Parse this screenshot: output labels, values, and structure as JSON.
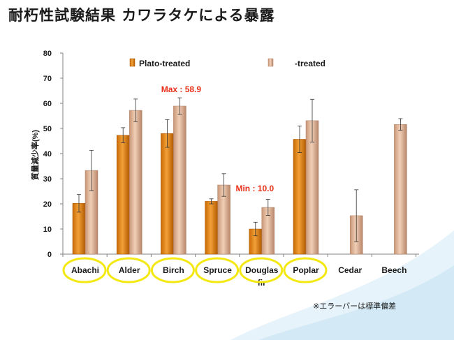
{
  "title": "耐朽性試験結果  カワラタケによる暴露",
  "footnote": "※エラーバーは標準偏差",
  "colors": {
    "treated": "#e0820c",
    "treated_dark": "#a85400",
    "untreated": "#dcae8e",
    "untreated_dark": "#b07f62",
    "annotation": "#e8301a",
    "circle": "#f4e812",
    "swoosh": "#c9e4f3"
  },
  "chart_data": {
    "type": "bar",
    "ylabel": "質量減少率(%)",
    "ylim": [
      0,
      80
    ],
    "yticks": [
      "0",
      "10",
      "20",
      "30",
      "40",
      "50",
      "60",
      "70",
      "80"
    ],
    "categories": [
      "Abachi",
      "Alder",
      "Birch",
      "Spruce",
      "Douglas fir",
      "Poplar",
      "Cedar",
      "Beech"
    ],
    "circled": [
      true,
      true,
      true,
      true,
      true,
      true,
      false,
      false
    ],
    "legend_position": "top",
    "series": [
      {
        "name": "Plato-treated",
        "values": [
          20.2,
          47.3,
          48.0,
          21.0,
          10.0,
          45.7,
          null,
          null
        ],
        "errors": [
          3.5,
          3.0,
          5.5,
          1.0,
          2.7,
          5.3,
          null,
          null
        ]
      },
      {
        "name": "-treated",
        "values": [
          33.3,
          57.2,
          58.9,
          27.5,
          18.6,
          53.1,
          15.3,
          51.6
        ],
        "errors": [
          8.0,
          4.5,
          3.3,
          4.5,
          3.2,
          8.5,
          10.3,
          2.3
        ]
      }
    ],
    "annotations": [
      {
        "text": "Max : 58.9"
      },
      {
        "text": "Min : 10.0"
      }
    ]
  }
}
